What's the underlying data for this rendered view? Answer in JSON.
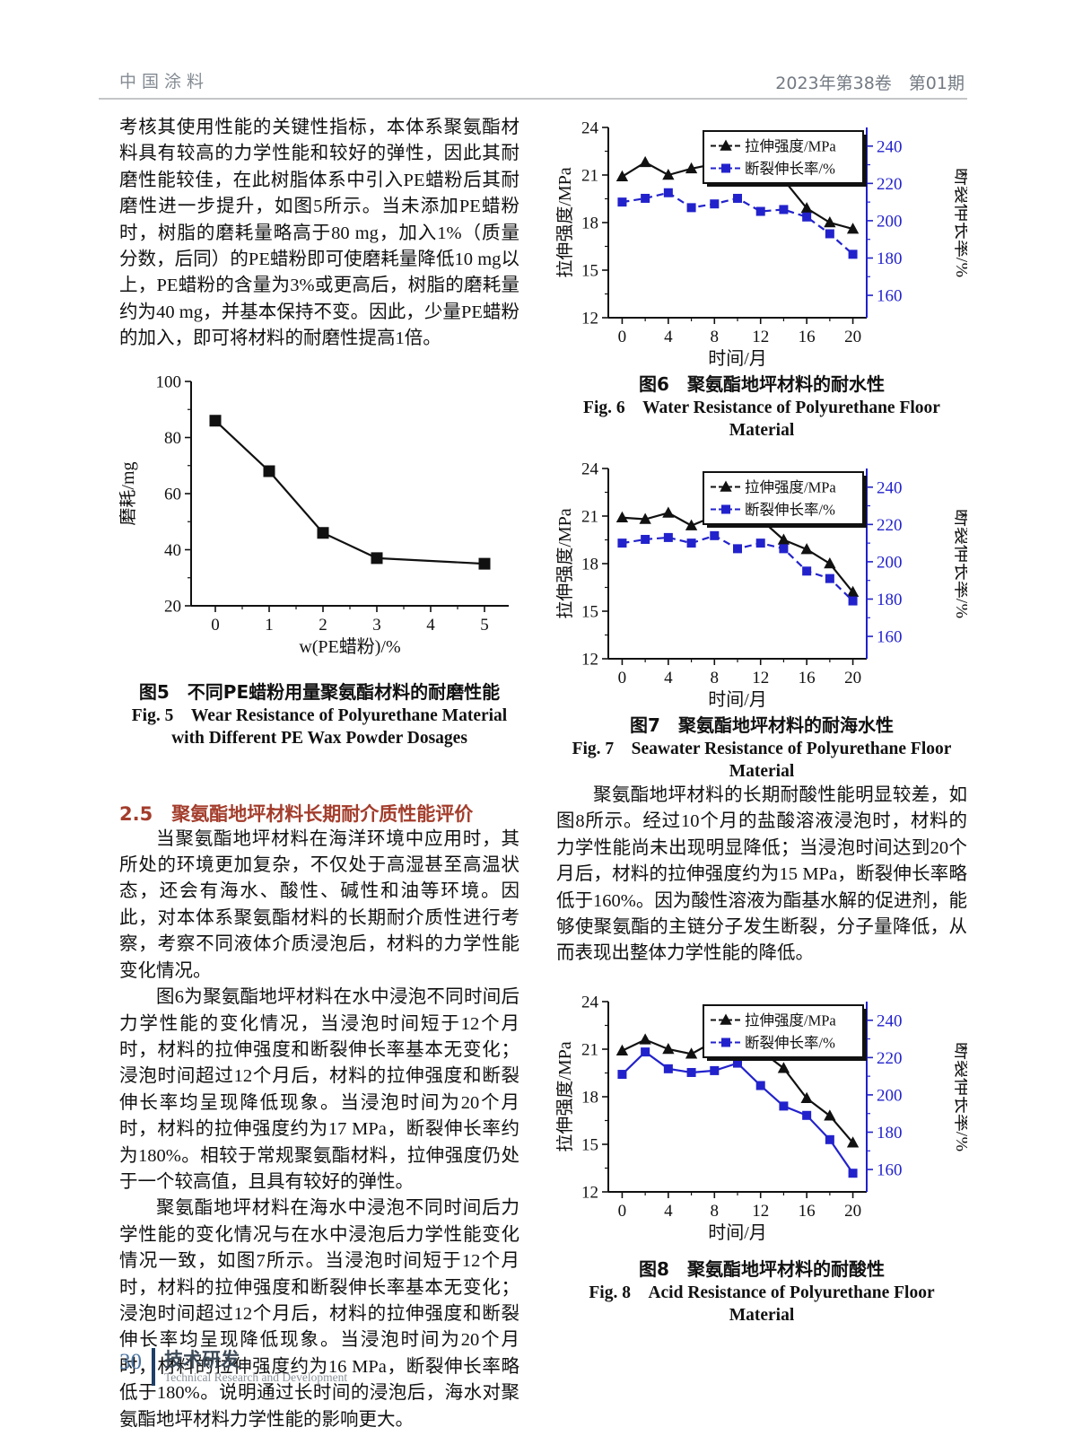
{
  "header": {
    "journal": "中国涂料",
    "issue": "2023年第38卷　第01期"
  },
  "footer": {
    "page_number": "30",
    "section_cn": "技术研发",
    "section_en": "Technical Research and Development"
  },
  "left_column": {
    "para1": "考核其使用性能的关键性指标，本体系聚氨酯材料具有较高的力学性能和较好的弹性，因此其耐磨性能较佳，在此树脂体系中引入PE蜡粉后其耐磨性进一步提升，如图5所示。当未添加PE蜡粉时，树脂的磨耗量略高于80 mg，加入1%（质量分数，后同）的PE蜡粉即可使磨耗量降低10 mg以上，PE蜡粉的含量为3%或更高后，树脂的磨耗量约为40 mg，并基本保持不变。因此，少量PE蜡粉的加入，即可将材料的耐磨性提高1倍。",
    "fig5_caption_cn": "图5　不同PE蜡粉用量聚氨酯材料的耐磨性能",
    "fig5_caption_en": "Fig. 5　Wear Resistance of Polyurethane Material with Different PE Wax Powder Dosages",
    "section_heading": "2.5　聚氨酯地坪材料长期耐介质性能评价",
    "para2": "当聚氨酯地坪材料在海洋环境中应用时，其所处的环境更加复杂，不仅处于高湿甚至高温状态，还会有海水、酸性、碱性和油等环境。因此，对本体系聚氨酯材料的长期耐介质性进行考察，考察不同液体介质浸泡后，材料的力学性能变化情况。",
    "para3": "图6为聚氨酯地坪材料在水中浸泡不同时间后力学性能的变化情况，当浸泡时间短于12个月时，材料的拉伸强度和断裂伸长率基本无变化；浸泡时间超过12个月后，材料的拉伸强度和断裂伸长率均呈现降低现象。当浸泡时间为20个月时，材料的拉伸强度约为17 MPa，断裂伸长率约为180%。相较于常规聚氨酯材料，拉伸强度仍处于一个较高值，且具有较好的弹性。",
    "para4": "聚氨酯地坪材料在海水中浸泡不同时间后力学性能的变化情况与在水中浸泡后力学性能变化情况一致，如图7所示。当浸泡时间短于12个月时，材料的拉伸强度和断裂伸长率基本无变化；浸泡时间超过12个月后，材料的拉伸强度和断裂伸长率均呈现降低现象。当浸泡时间为20个月时，材料的拉伸强度约为16 MPa，断裂伸长率略低于180%。说明通过长时间的浸泡后，海水对聚氨酯地坪材料力学性能的影响更大。"
  },
  "right_column": {
    "fig6_caption_cn": "图6　聚氨酯地坪材料的耐水性",
    "fig6_caption_en": "Fig. 6　Water Resistance of Polyurethane Floor Material",
    "fig7_caption_cn": "图7　聚氨酯地坪材料的耐海水性",
    "fig7_caption_en": "Fig. 7　Seawater Resistance of Polyurethane Floor Material",
    "para5": "聚氨酯地坪材料的长期耐酸性能明显较差，如图8所示。经过10个月的盐酸溶液浸泡时，材料的力学性能尚未出现明显降低；当浸泡时间达到20个月后，材料的拉伸强度约为15 MPa，断裂伸长率略低于160%。因为酸性溶液为酯基水解的促进剂，能够使聚氨酯的主链分子发生断裂，分子量降低，从而表现出整体力学性能的降低。",
    "fig8_caption_cn": "图8　聚氨酯地坪材料的耐酸性",
    "fig8_caption_en": "Fig. 8　Acid Resistance of Polyurethane Floor Material"
  },
  "colors": {
    "accent": "#a33d2c",
    "blue": "#2222cc",
    "ink": "#111111",
    "steel_blue": "#4b74a0",
    "navy": "#1e3f66",
    "header_gray": "#848b93"
  },
  "chart_data": [
    {
      "id": "fig5",
      "type": "line",
      "title": "图5 不同PE蜡粉用量聚氨酯材料的耐磨性能",
      "xlabel": "w(PE蜡粉)/%",
      "ylabel": "磨耗/mg",
      "xlim": [
        -0.45,
        5.45
      ],
      "ylim": [
        20,
        100
      ],
      "xticks": [
        0,
        1,
        2,
        3,
        4,
        5
      ],
      "yticks": [
        20,
        40,
        60,
        80,
        100
      ],
      "grid": false,
      "legend": false,
      "series": [
        {
          "name": "磨耗",
          "axis": "left",
          "x": [
            0,
            1,
            2,
            3,
            5
          ],
          "values": [
            86,
            68,
            46,
            37,
            35
          ],
          "marker": "square",
          "color": "#111111",
          "dash": null,
          "marker_size": 7.5
        }
      ]
    },
    {
      "id": "fig6",
      "type": "line",
      "title": "图6 聚氨酯地坪材料的耐水性",
      "xlabel": "时间/月",
      "ylabel_left": "拉伸强度/MPa",
      "ylabel_right": "断裂伸长率/%",
      "xlim": [
        -1.2,
        21.2
      ],
      "ylim_left": [
        12,
        24
      ],
      "ylim_right": [
        148,
        250
      ],
      "xticks": [
        0,
        4,
        8,
        12,
        16,
        20
      ],
      "yticks_left": [
        12,
        15,
        18,
        21,
        24
      ],
      "yticks_right": [
        160,
        180,
        200,
        220,
        240
      ],
      "x": [
        0,
        2,
        4,
        6,
        8,
        10,
        12,
        14,
        16,
        18,
        20
      ],
      "grid": false,
      "legend": {
        "position": "top-right"
      },
      "series": [
        {
          "name": "拉伸强度/MPa",
          "axis": "left",
          "marker": "triangle",
          "color": "#111111",
          "dash": null,
          "marker_size": 7,
          "values": [
            20.9,
            21.8,
            21.0,
            21.4,
            21.7,
            20.9,
            21.7,
            20.7,
            18.9,
            18.0,
            17.6
          ]
        },
        {
          "name": "断裂伸长率/%",
          "axis": "right",
          "marker": "square",
          "color": "#2222cc",
          "dash": [
            8,
            5
          ],
          "marker_size": 6,
          "values": [
            210,
            212,
            215,
            207,
            209,
            212,
            205,
            206,
            202,
            193,
            182
          ]
        }
      ]
    },
    {
      "id": "fig7",
      "type": "line",
      "title": "图7 聚氨酯地坪材料的耐海水性",
      "xlabel": "时间/月",
      "ylabel_left": "拉伸强度/MPa",
      "ylabel_right": "断裂伸长率/%",
      "xlim": [
        -1.2,
        21.2
      ],
      "ylim_left": [
        12,
        24
      ],
      "ylim_right": [
        148,
        250
      ],
      "xticks": [
        0,
        4,
        8,
        12,
        16,
        20
      ],
      "yticks_left": [
        12,
        15,
        18,
        21,
        24
      ],
      "yticks_right": [
        160,
        180,
        200,
        220,
        240
      ],
      "x": [
        0,
        2,
        4,
        6,
        8,
        10,
        12,
        14,
        16,
        18,
        20
      ],
      "grid": false,
      "legend": {
        "position": "top-right"
      },
      "series": [
        {
          "name": "拉伸强度/MPa",
          "axis": "left",
          "marker": "triangle",
          "color": "#111111",
          "dash": null,
          "marker_size": 7,
          "values": [
            20.9,
            20.8,
            21.2,
            20.4,
            21.0,
            20.6,
            20.8,
            19.5,
            18.9,
            18.0,
            16.2
          ]
        },
        {
          "name": "断裂伸长率/%",
          "axis": "right",
          "marker": "square",
          "color": "#2222cc",
          "dash": [
            8,
            5
          ],
          "marker_size": 6,
          "values": [
            210,
            212,
            213,
            210,
            214,
            207,
            210,
            207,
            195,
            191,
            179
          ]
        }
      ]
    },
    {
      "id": "fig8",
      "type": "line",
      "title": "图8 聚氨酯地坪材料的耐酸性",
      "xlabel": "时间/月",
      "ylabel_left": "拉伸强度/MPa",
      "ylabel_right": "断裂伸长率/%",
      "xlim": [
        -1.2,
        21.2
      ],
      "ylim_left": [
        12,
        24
      ],
      "ylim_right": [
        148,
        250
      ],
      "xticks": [
        0,
        4,
        8,
        12,
        16,
        20
      ],
      "yticks_left": [
        12,
        15,
        18,
        21,
        24
      ],
      "yticks_right": [
        160,
        180,
        200,
        220,
        240
      ],
      "x": [
        0,
        2,
        4,
        6,
        8,
        10,
        12,
        14,
        16,
        18,
        20
      ],
      "grid": false,
      "legend": {
        "position": "top-right"
      },
      "series": [
        {
          "name": "拉伸强度/MPa",
          "axis": "left",
          "marker": "triangle",
          "color": "#111111",
          "dash": null,
          "marker_size": 7,
          "values": [
            20.9,
            21.6,
            21.0,
            20.7,
            21.5,
            20.8,
            20.9,
            19.8,
            17.9,
            16.8,
            15.1
          ]
        },
        {
          "name": "断裂伸长率/%",
          "axis": "right",
          "marker": "square",
          "color": "#2222cc",
          "dash": null,
          "marker_size": 6,
          "values": [
            211,
            223,
            214,
            212,
            213,
            217,
            205,
            194,
            189,
            176,
            158
          ]
        }
      ]
    }
  ]
}
